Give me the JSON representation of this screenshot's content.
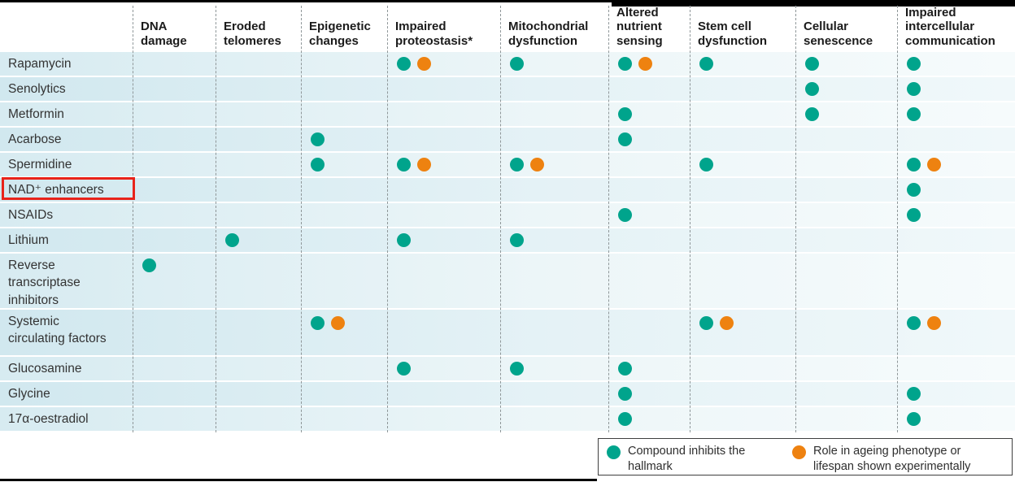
{
  "chart_data": {
    "type": "table",
    "title": "",
    "description": "Dot matrix of compounds (rows) versus hallmarks of ageing (columns)",
    "columns": [
      "DNA damage",
      "Eroded telomeres",
      "Epigenetic changes",
      "Impaired proteostasis*",
      "Mitochondrial dysfunction",
      "Altered nutrient sensing",
      "Stem cell dysfunction",
      "Cellular senescence",
      "Impaired intercellular communication"
    ],
    "rows": [
      "Rapamycin",
      "Senolytics",
      "Metformin",
      "Acarbose",
      "Spermidine",
      "NAD⁺ enhancers",
      "NSAIDs",
      "Lithium",
      "Reverse transcriptase inhibitors",
      "Systemic circulating factors",
      "Glucosamine",
      "Glycine",
      "17α-oestradiol"
    ],
    "cell_code_meaning": {
      "I": "Compound inhibits the hallmark (teal dot)",
      "E": "Role in ageing phenotype or lifespan shown experimentally (orange dot)"
    },
    "cells": [
      [
        "",
        "",
        "",
        "IE",
        "I",
        "IE",
        "I",
        "I",
        "I"
      ],
      [
        "",
        "",
        "",
        "",
        "",
        "",
        "",
        "I",
        "I"
      ],
      [
        "",
        "",
        "",
        "",
        "",
        "I",
        "",
        "I",
        "I"
      ],
      [
        "",
        "",
        "I",
        "",
        "",
        "I",
        "",
        "",
        ""
      ],
      [
        "",
        "",
        "I",
        "IE",
        "IE",
        "",
        "I",
        "",
        "IE"
      ],
      [
        "",
        "",
        "",
        "",
        "",
        "",
        "",
        "",
        "I"
      ],
      [
        "",
        "",
        "",
        "",
        "",
        "I",
        "",
        "",
        "I"
      ],
      [
        "",
        "I",
        "",
        "I",
        "I",
        "",
        "",
        "",
        ""
      ],
      [
        "I",
        "",
        "",
        "",
        "",
        "",
        "",
        "",
        ""
      ],
      [
        "",
        "",
        "IE",
        "",
        "",
        "",
        "IE",
        "",
        "IE"
      ],
      [
        "",
        "",
        "",
        "I",
        "I",
        "I",
        "",
        "",
        ""
      ],
      [
        "",
        "",
        "",
        "",
        "",
        "I",
        "",
        "",
        "I"
      ],
      [
        "",
        "",
        "",
        "",
        "",
        "I",
        "",
        "",
        "I"
      ]
    ],
    "legend_entries": [
      "Compound inhibits the hallmark",
      "Role in ageing phenotype or lifespan shown experimentally"
    ],
    "legend_position": "bottom-right",
    "grid": "dashed vertical column separators"
  },
  "display": {
    "row_label_multiline": {
      "8": "Reverse\ntranscriptase\ninhibitors",
      "9": "Systemic\ncirculating factors"
    }
  },
  "legend": {
    "inhibits_label": "Compound inhibits the hallmark",
    "experimental_label": "Role in ageing phenotype or lifespan shown experimentally"
  },
  "annotation": {
    "shape": "red-box",
    "target_row": "NAD⁺ enhancers",
    "color": "#E8231A"
  },
  "colors": {
    "teal": "#00A48C",
    "orange": "#EE8210",
    "dashed_line": "#8F9799"
  }
}
